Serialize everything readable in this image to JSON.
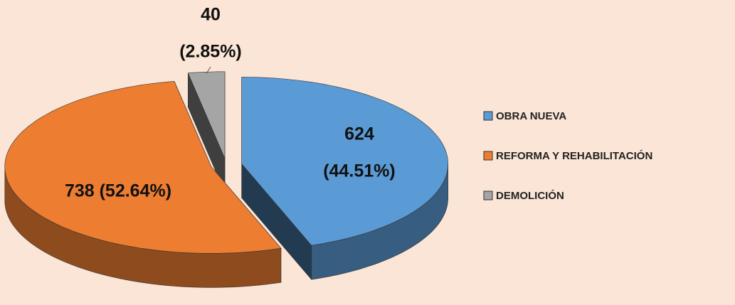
{
  "chart_data": {
    "type": "pie",
    "categories": [
      "OBRA NUEVA",
      "REFORMA Y REHABILITACIÓN",
      "DEMOLICIÓN"
    ],
    "values": [
      624,
      738,
      40
    ],
    "value_labels": [
      [
        "624",
        "(44.51%)"
      ],
      [
        "738 (52.64%)"
      ],
      [
        "40",
        "(2.85%)"
      ]
    ],
    "colors": [
      "#5b9bd5",
      "#ed7d31",
      "#a5a5a5"
    ],
    "legend": "right"
  }
}
